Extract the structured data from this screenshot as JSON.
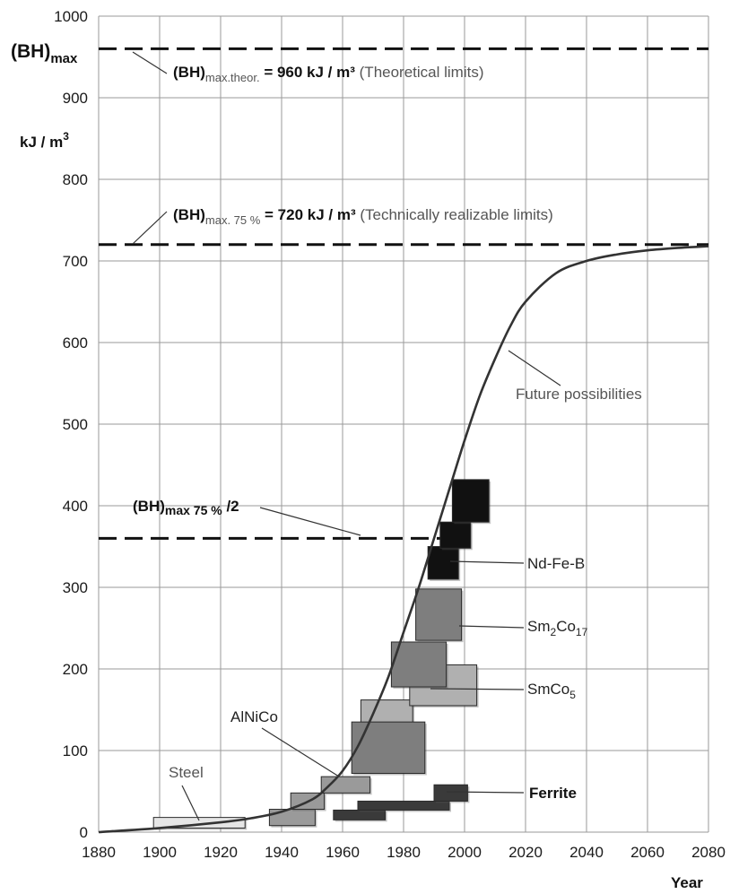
{
  "chart_data": {
    "type": "line",
    "xlabel": "Year",
    "ylabel": "kJ / m³",
    "y_title": "(BH)max",
    "xlim": [
      1880,
      2080
    ],
    "ylim": [
      0,
      1000
    ],
    "x_ticks": [
      1880,
      1900,
      1920,
      1940,
      1960,
      1980,
      2000,
      2020,
      2040,
      2060,
      2080
    ],
    "y_ticks": [
      0,
      100,
      200,
      300,
      400,
      500,
      600,
      700,
      800,
      900,
      1000
    ],
    "grid": true,
    "curve": {
      "name": "Future possibilities",
      "x": [
        1880,
        1900,
        1920,
        1930,
        1940,
        1950,
        1955,
        1960,
        1965,
        1970,
        1975,
        1980,
        1985,
        1990,
        1995,
        2000,
        2005,
        2010,
        2015,
        2020,
        2030,
        2040,
        2050,
        2060,
        2070,
        2080
      ],
      "y": [
        0,
        5,
        12,
        17,
        25,
        40,
        55,
        75,
        105,
        145,
        190,
        245,
        300,
        360,
        420,
        480,
        535,
        580,
        620,
        650,
        685,
        700,
        708,
        713,
        716,
        718
      ]
    },
    "reference_lines": [
      {
        "key": "theoretical",
        "value": 960,
        "x_start": 1880,
        "x_end": 2080
      },
      {
        "key": "technical",
        "value": 720,
        "x_start": 1880,
        "x_end": 2080
      },
      {
        "key": "half",
        "value": 360,
        "x_start": 1880,
        "x_end": 1995
      }
    ],
    "annotations": {
      "theoretical": {
        "sub": "max.theor.",
        "text": " = 960 kJ / m³",
        "rest": " (Theoretical limits)"
      },
      "technical": {
        "sub": "max. 75 %",
        "text": " =    720 kJ / m³",
        "rest": " (Technically realizable limits)"
      },
      "half": {
        "sub": "max 75 %",
        "text": " /2"
      }
    },
    "materials": [
      {
        "name": "Steel",
        "color": "#e6e6e6",
        "blocks": [
          {
            "x": [
              1898,
              1928
            ],
            "y": [
              5,
              18
            ]
          }
        ]
      },
      {
        "name": "AlNiCo",
        "color": "#9a9a9a",
        "blocks": [
          {
            "x": [
              1936,
              1951
            ],
            "y": [
              8,
              28
            ]
          },
          {
            "x": [
              1943,
              1954
            ],
            "y": [
              28,
              48
            ]
          },
          {
            "x": [
              1953,
              1969
            ],
            "y": [
              48,
              68
            ]
          }
        ]
      },
      {
        "name": "Ferrite",
        "color": "#3a3a3a",
        "blocks": [
          {
            "x": [
              1957,
              1974
            ],
            "y": [
              15,
              27
            ]
          },
          {
            "x": [
              1965,
              1995
            ],
            "y": [
              27,
              38
            ]
          },
          {
            "x": [
              1990,
              2001
            ],
            "y": [
              38,
              58
            ]
          }
        ]
      },
      {
        "name": "SmCo₅",
        "color": "#b0b0b0",
        "blocks": [
          {
            "x": [
              1966,
              1983
            ],
            "y": [
              118,
              162
            ]
          },
          {
            "x": [
              1982,
              2004
            ],
            "y": [
              155,
              205
            ]
          }
        ]
      },
      {
        "name": "Sm₂Co₁₇",
        "color": "#7e7e7e",
        "blocks": [
          {
            "x": [
              1963,
              1987
            ],
            "y": [
              72,
              135
            ]
          },
          {
            "x": [
              1976,
              1994
            ],
            "y": [
              178,
              233
            ]
          },
          {
            "x": [
              1984,
              1999
            ],
            "y": [
              235,
              298
            ]
          }
        ]
      },
      {
        "name": "Nd-Fe-B",
        "color": "#111111",
        "blocks": [
          {
            "x": [
              1988,
              1998
            ],
            "y": [
              310,
              350
            ]
          },
          {
            "x": [
              1992,
              2002
            ],
            "y": [
              348,
              380
            ]
          },
          {
            "x": [
              1996,
              2008
            ],
            "y": [
              380,
              432
            ]
          }
        ]
      }
    ]
  },
  "labels": {
    "title_main": "(BH)",
    "title_sub": "max",
    "unit": "kJ / m",
    "unit_sup": "3",
    "bh": "(BH)",
    "future": "Future possibilities",
    "ndfeb": "Nd-Fe-B",
    "sm2co17_a": "Sm",
    "sm2co17_b": "2",
    "sm2co17_c": "Co",
    "sm2co17_d": "17",
    "smco5_a": "SmCo",
    "smco5_b": "5",
    "ferrite": "Ferrite",
    "alnico": "AlNiCo",
    "steel": "Steel",
    "year": "Year"
  }
}
